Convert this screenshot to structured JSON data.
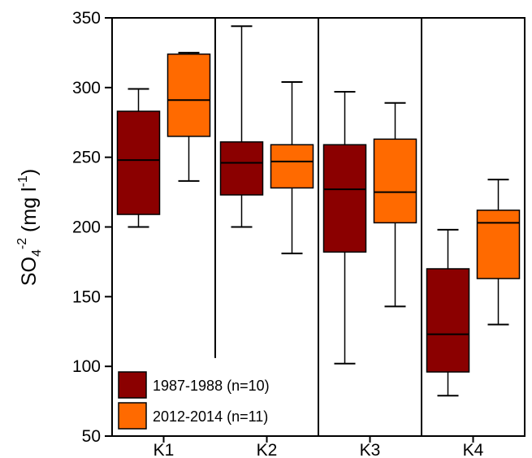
{
  "chart_data": {
    "type": "box",
    "ylabel": {
      "base": "SO",
      "sub": "4",
      "sup": "-2",
      "unit_open": " (mg l",
      "unit_sup": "-1",
      "unit_close": ")"
    },
    "ylim": [
      50,
      350
    ],
    "yticks": [
      "50",
      "100",
      "150",
      "200",
      "250",
      "300",
      "350"
    ],
    "categories": [
      "K1",
      "K2",
      "K3",
      "K4"
    ],
    "series": [
      {
        "name": "1987-1988 (n=10)",
        "color": "#8b0000",
        "boxes": [
          {
            "min": 200,
            "q1": 209,
            "median": 248,
            "q3": 283,
            "max": 299
          },
          {
            "min": 200,
            "q1": 223,
            "median": 246,
            "q3": 261,
            "max": 344
          },
          {
            "min": 102,
            "q1": 182,
            "median": 227,
            "q3": 259,
            "max": 297
          },
          {
            "min": 79,
            "q1": 96,
            "median": 123,
            "q3": 170,
            "max": 198
          }
        ]
      },
      {
        "name": "2012-2014 (n=11)",
        "color": "#ff6a00",
        "boxes": [
          {
            "min": 233,
            "q1": 265,
            "median": 291,
            "q3": 324,
            "max": 325
          },
          {
            "min": 181,
            "q1": 228,
            "median": 247,
            "q3": 259,
            "max": 304
          },
          {
            "min": 143,
            "q1": 203,
            "median": 225,
            "q3": 263,
            "max": 289
          },
          {
            "min": 130,
            "q1": 163,
            "median": 203,
            "q3": 212,
            "max": 234
          }
        ]
      }
    ],
    "separators": [
      {
        "after_category": "K1",
        "from": 106,
        "to": 350
      },
      {
        "after_category": "K2",
        "from": 50,
        "to": 350
      },
      {
        "after_category": "K3",
        "from": 50,
        "to": 350
      }
    ],
    "legend": {
      "placement": "bottom-left"
    }
  }
}
